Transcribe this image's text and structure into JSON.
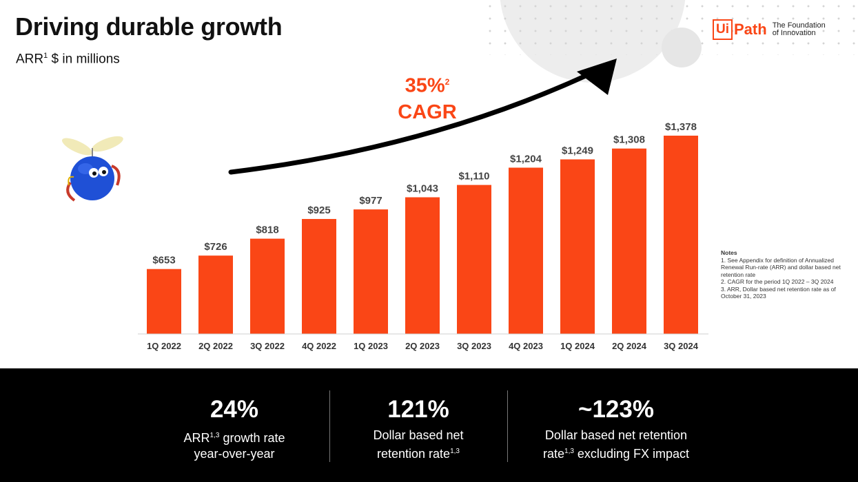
{
  "header": {
    "title": "Driving durable growth",
    "subtitle_prefix": "ARR",
    "subtitle_sup": "1",
    "subtitle_suffix": " $ in millions"
  },
  "logo": {
    "box_text": "Ui",
    "path_text": "Path",
    "tagline_line1": "The Foundation",
    "tagline_line2": "of Innovation"
  },
  "cagr": {
    "value": "35%",
    "sup": "2",
    "label": "CAGR"
  },
  "colors": {
    "accent": "#fa4616",
    "footer_bg": "#000000",
    "mascot": "#1f50d6"
  },
  "chart_data": {
    "type": "bar",
    "categories": [
      "1Q 2022",
      "2Q 2022",
      "3Q 2022",
      "4Q 2022",
      "1Q 2023",
      "2Q 2023",
      "3Q 2023",
      "4Q 2023",
      "1Q 2024",
      "2Q 2024",
      "3Q 2024"
    ],
    "values": [
      653,
      726,
      818,
      925,
      977,
      1043,
      1110,
      1204,
      1249,
      1308,
      1378
    ],
    "data_labels": [
      "$653",
      "$726",
      "$818",
      "$925",
      "$977",
      "$1,043",
      "$1,110",
      "$1,204",
      "$1,249",
      "$1,308",
      "$1,378"
    ],
    "ylim": [
      300,
      1378
    ],
    "grid": false,
    "legend": "none",
    "bar_color": "#fa4616"
  },
  "notes": {
    "title": "Notes",
    "lines": [
      "1. See Appendix for definition of Annualized Renewal Run-rate (ARR) and dollar based net retention rate",
      "2. CAGR for the period 1Q 2022 – 3Q 2024",
      "3. ARR, Dollar based net retention rate as of October 31, 2023"
    ]
  },
  "footer": {
    "stats": [
      {
        "value": "24%",
        "label1_pre": "ARR",
        "label1_sup": "1,3",
        "label1_post": " growth rate",
        "label2_pre": "year-over-year",
        "label2_sup": "",
        "label2_post": ""
      },
      {
        "value": "121%",
        "label1_pre": "Dollar based net",
        "label1_sup": "",
        "label1_post": "",
        "label2_pre": "retention rate",
        "label2_sup": "1,3",
        "label2_post": ""
      },
      {
        "value": "~123%",
        "label1_pre": "Dollar based net retention",
        "label1_sup": "",
        "label1_post": "",
        "label2_pre": "rate",
        "label2_sup": "1,3",
        "label2_post": " excluding FX impact"
      }
    ]
  }
}
